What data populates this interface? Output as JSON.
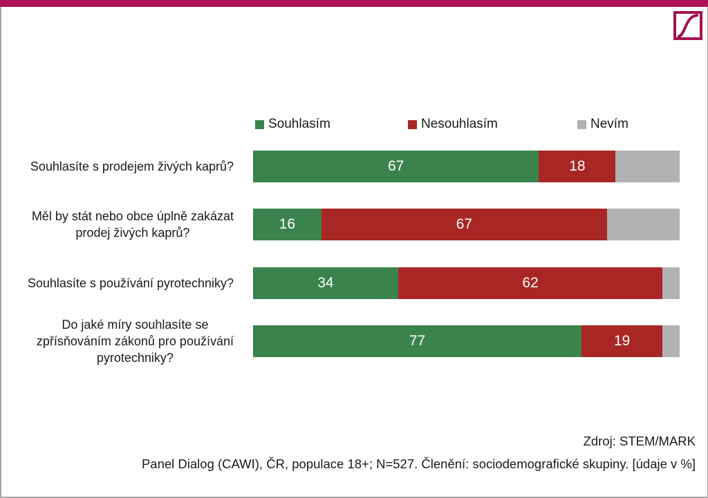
{
  "colors": {
    "topbar": "#b0105a",
    "border": "#a6a6a6",
    "logo": "#a3124f",
    "souhlasim": "#3b834c",
    "nesouhlasim": "#a82724",
    "nevim": "#b2b2b2"
  },
  "logo": {
    "icon": "s-curve-logo-icon"
  },
  "chart_data": {
    "type": "bar",
    "orientation": "horizontal",
    "stacked": true,
    "unit": "%",
    "categories": [
      "Souhlasíte s prodejem živých kaprů?",
      "Měl by stát nebo obce úplně zakázat prodej živých kaprů?",
      "Souhlasíte s používání pyrotechniky?",
      "Do jaké míry souhlasíte se zpřísňováním zákonů pro používání pyrotechniky?"
    ],
    "category_lines": [
      [
        "Souhlasíte s prodejem živých kaprů?"
      ],
      [
        "Měl by stát nebo obce úplně zakázat",
        "prodej živých kaprů?"
      ],
      [
        "Souhlasíte s používání pyrotechniky?"
      ],
      [
        "Do jaké míry souhlasíte se",
        "zpřísňováním zákonů pro používání",
        "pyrotechniky?"
      ]
    ],
    "series": [
      {
        "name": "Souhlasím",
        "values": [
          67,
          16,
          34,
          77
        ],
        "labels": [
          "67",
          "16",
          "34",
          "77"
        ]
      },
      {
        "name": "Nesouhlasím",
        "values": [
          18,
          67,
          62,
          19
        ],
        "labels": [
          "18",
          "67",
          "62",
          "19"
        ]
      },
      {
        "name": "Nevím",
        "values": [
          15,
          17,
          4,
          4
        ],
        "labels": [
          "",
          "",
          "",
          ""
        ]
      }
    ],
    "xlim": [
      0,
      100
    ],
    "legend_position": "top",
    "grid": false
  },
  "footer": {
    "source": "Zdroj: STEM/MARK",
    "methodology": "Panel Dialog (CAWI), ČR, populace 18+; N=527. Členění: sociodemografické skupiny. [údaje v %]"
  }
}
